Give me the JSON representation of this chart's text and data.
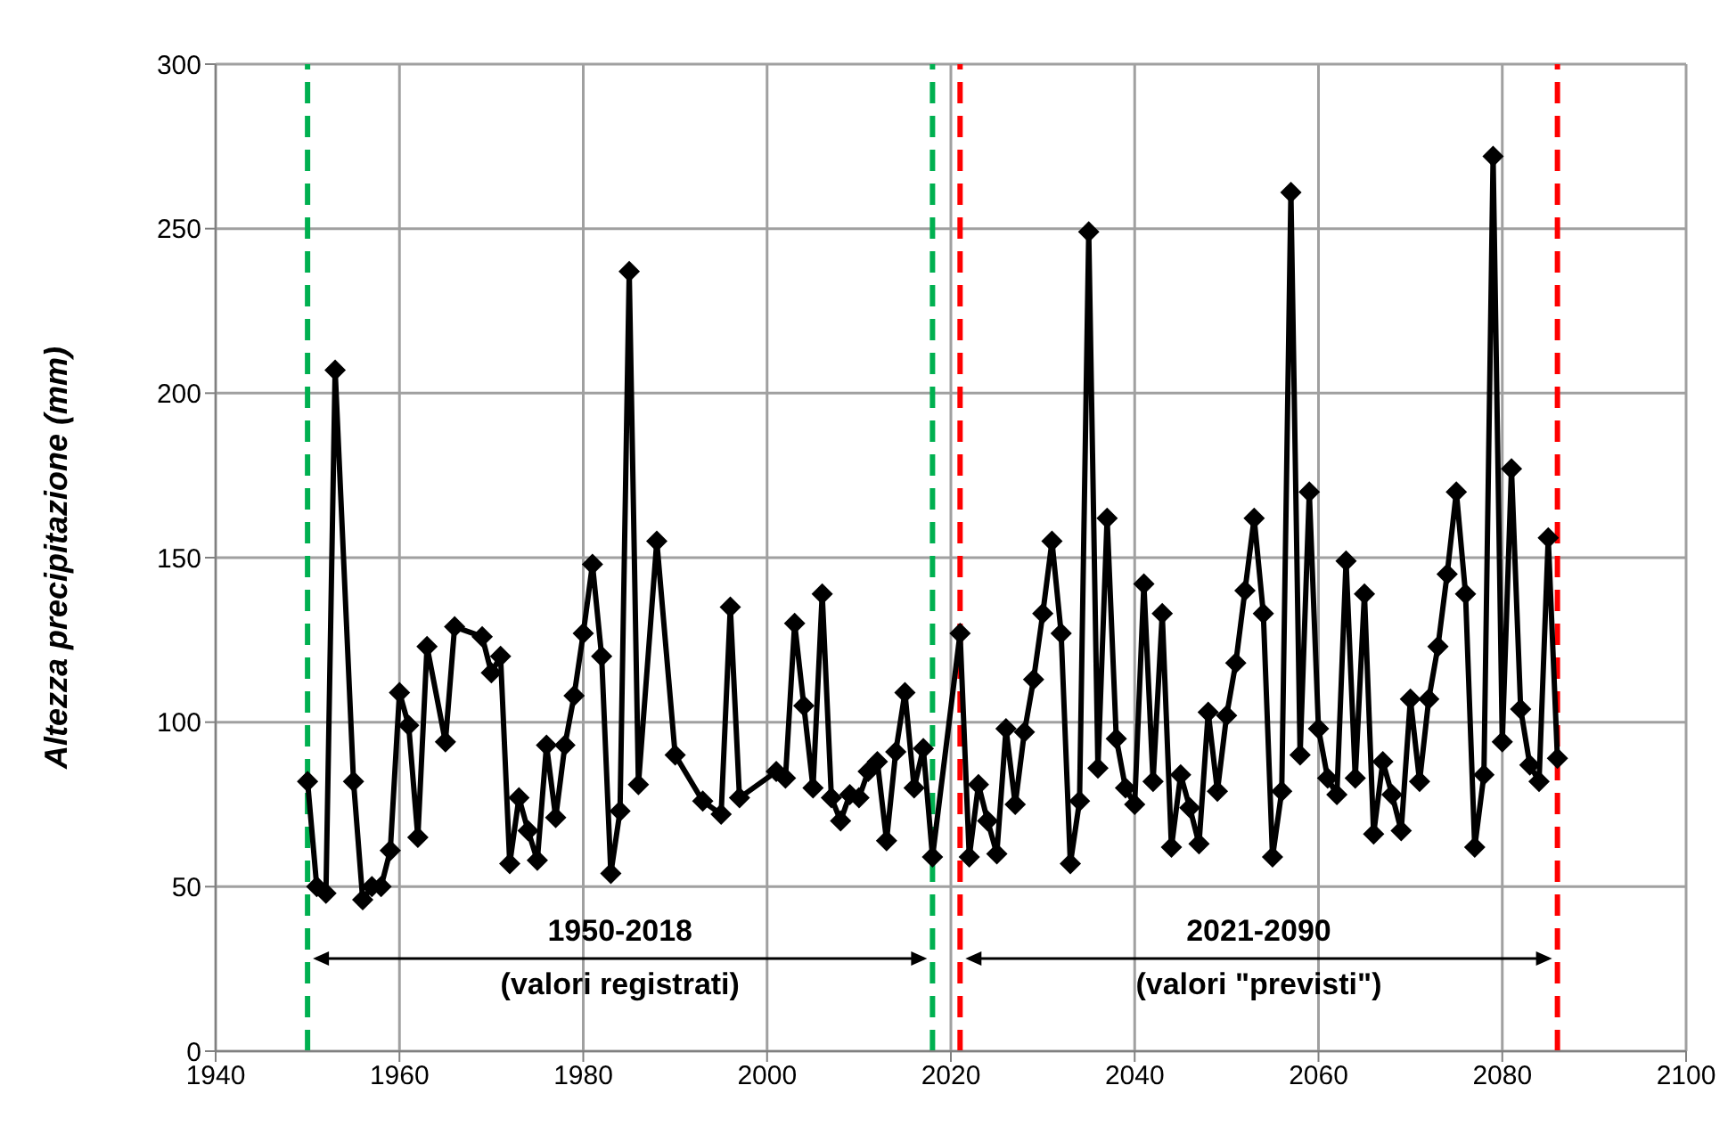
{
  "chart_data": {
    "type": "line",
    "ylabel": "Altezza precipitazione (mm)",
    "x": [
      1950,
      1951,
      1952,
      1953,
      1955,
      1956,
      1957,
      1958,
      1959,
      1960,
      1961,
      1962,
      1963,
      1965,
      1966,
      1969,
      1970,
      1971,
      1972,
      1973,
      1974,
      1975,
      1976,
      1977,
      1978,
      1979,
      1980,
      1981,
      1982,
      1983,
      1984,
      1985,
      1986,
      1988,
      1990,
      1993,
      1995,
      1996,
      1997,
      2001,
      2002,
      2003,
      2004,
      2005,
      2006,
      2007,
      2008,
      2009,
      2010,
      2011,
      2012,
      2013,
      2014,
      2015,
      2016,
      2017,
      2018,
      2021,
      2022,
      2023,
      2024,
      2025,
      2026,
      2027,
      2028,
      2029,
      2030,
      2031,
      2032,
      2033,
      2034,
      2035,
      2036,
      2037,
      2038,
      2039,
      2040,
      2041,
      2042,
      2043,
      2044,
      2045,
      2046,
      2047,
      2048,
      2049,
      2050,
      2051,
      2052,
      2053,
      2054,
      2055,
      2056,
      2057,
      2058,
      2059,
      2060,
      2061,
      2062,
      2063,
      2064,
      2065,
      2066,
      2067,
      2068,
      2069,
      2070,
      2071,
      2072,
      2073,
      2074,
      2075,
      2076,
      2077,
      2078,
      2079,
      2080,
      2081,
      2082,
      2083,
      2084,
      2085,
      2086
    ],
    "series": [
      {
        "color": "#000000",
        "values": [
          82,
          50,
          48,
          207,
          82,
          46,
          50,
          50,
          61,
          109,
          99,
          65,
          123,
          94,
          129,
          126,
          115,
          120,
          57,
          77,
          67,
          58,
          93,
          71,
          93,
          108,
          127,
          148,
          120,
          54,
          73,
          237,
          81,
          155,
          90,
          76,
          72,
          135,
          77,
          85,
          83,
          130,
          105,
          80,
          139,
          77,
          70,
          78,
          77,
          85,
          88,
          64,
          91,
          109,
          80,
          92,
          59,
          127,
          59,
          81,
          70,
          60,
          98,
          75,
          97,
          113,
          133,
          155,
          127,
          57,
          76,
          249,
          86,
          162,
          95,
          80,
          75,
          142,
          82,
          133,
          62,
          84,
          74,
          63,
          103,
          79,
          102,
          118,
          140,
          162,
          133,
          59,
          79,
          261,
          90,
          170,
          98,
          83,
          78,
          149,
          83,
          139,
          66,
          88,
          78,
          67,
          107,
          82,
          107,
          123,
          145,
          170,
          139,
          62,
          84,
          272,
          94,
          177,
          104,
          87,
          82,
          156,
          89
        ]
      }
    ],
    "xlim": [
      1940,
      2100
    ],
    "xticks": [
      1940,
      1960,
      1980,
      2000,
      2020,
      2040,
      2060,
      2080,
      2100
    ],
    "ylim": [
      0,
      300
    ],
    "yticks": [
      0,
      50,
      100,
      150,
      200,
      250,
      300
    ],
    "grid": true,
    "marker": "diamond",
    "line_style": "solid",
    "ref_lines": [
      {
        "axis": "x",
        "value": 1950,
        "color": "#00b050",
        "line_style": "dashed"
      },
      {
        "axis": "x",
        "value": 2018,
        "color": "#00b050",
        "line_style": "dashed"
      },
      {
        "axis": "x",
        "value": 2021,
        "color": "#ff0000",
        "line_style": "dashed"
      },
      {
        "axis": "x",
        "value": 2086,
        "color": "#ff0000",
        "line_style": "dashed"
      }
    ],
    "annotations": [
      "1950-2018\n(valori registrati)",
      "2021-2090\n(valori \"previsti\")"
    ]
  }
}
